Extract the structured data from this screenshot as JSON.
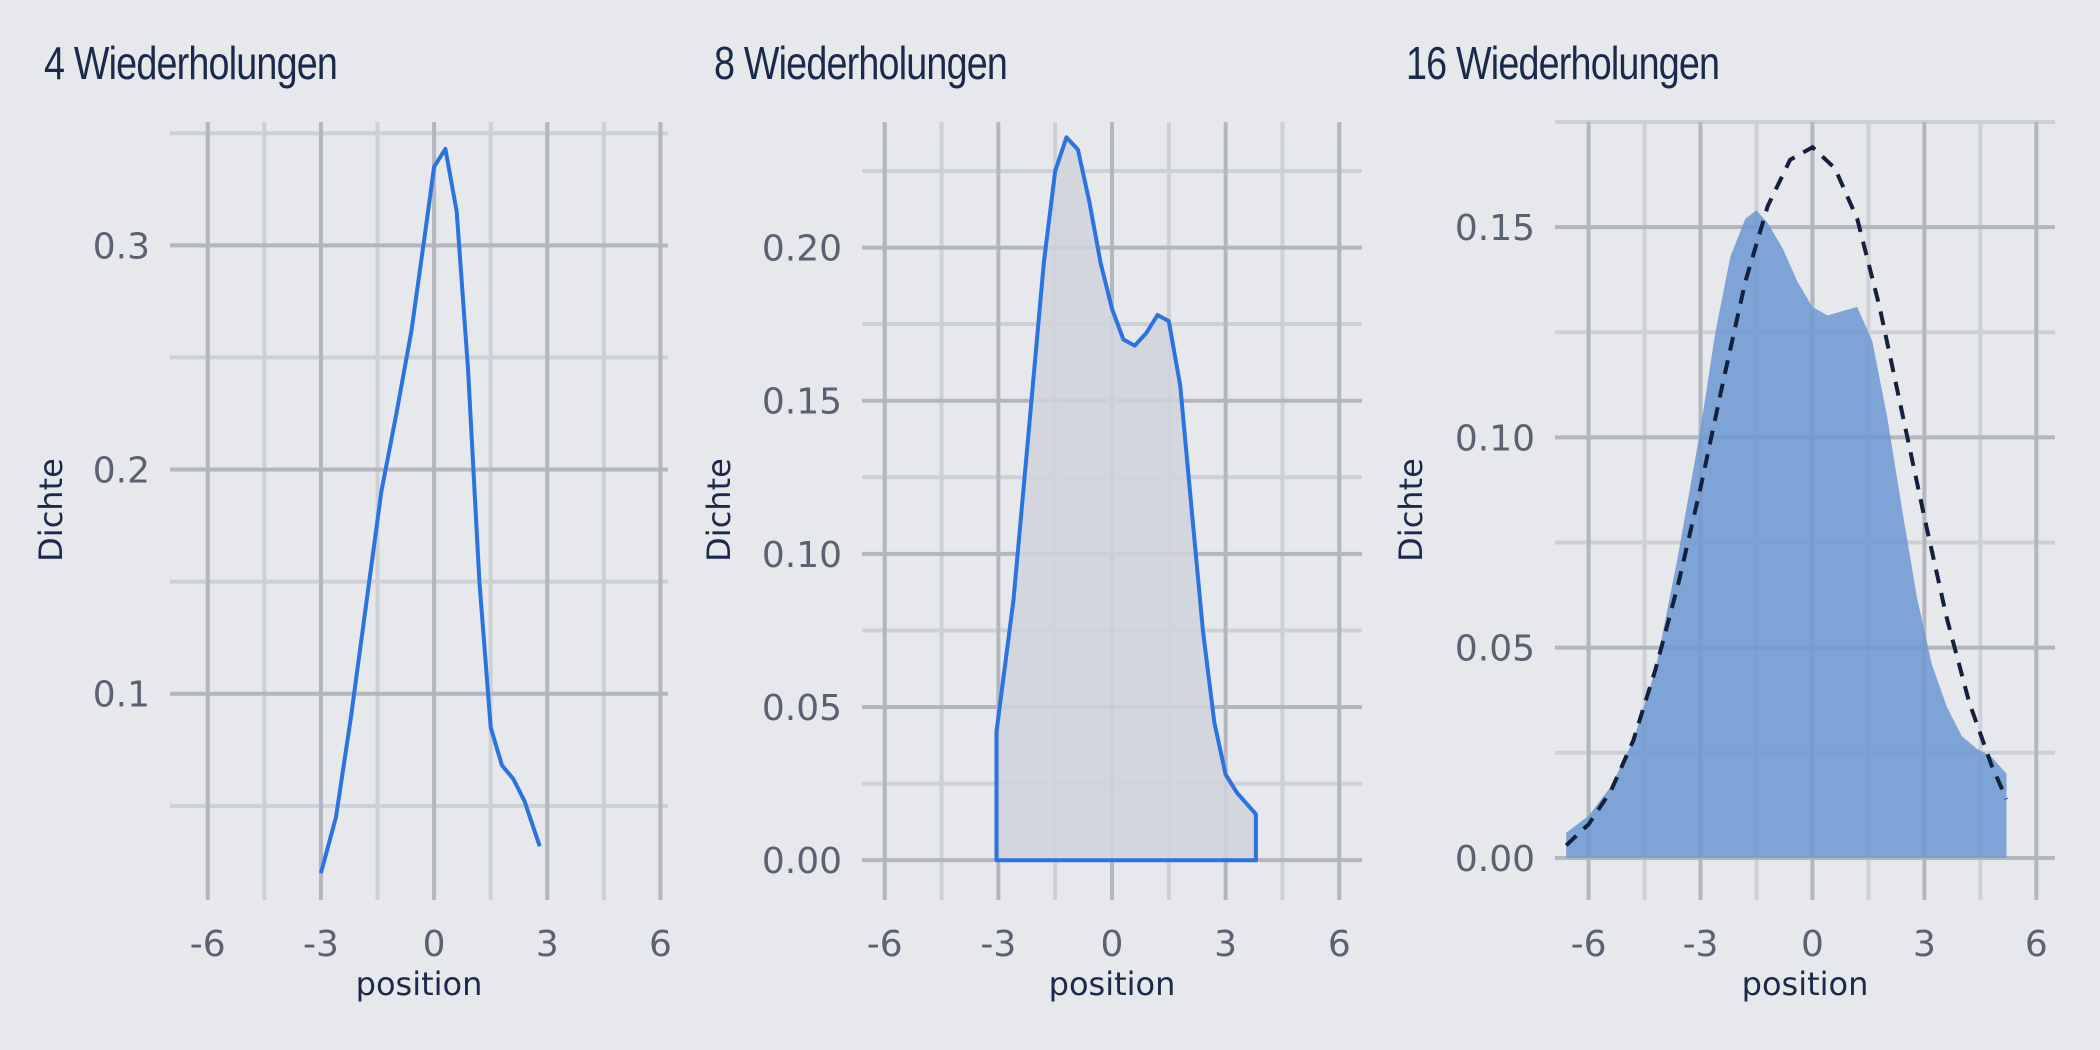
{
  "colors": {
    "background": "#e6e8ec",
    "grid_major": "#b3b6bd",
    "grid_minor": "#cdd0d5",
    "tick_text": "#5a6171",
    "title": "#1b2a4a",
    "line_blue": "#2a73e0",
    "fill_gray": "#cfd3da",
    "fill_blue": "#6f99d3",
    "normal_dashed": "#14213d"
  },
  "chart_data": [
    {
      "type": "line",
      "title": "4 Wiederholungen",
      "xlabel": "position",
      "ylabel": "Dichte",
      "xlim": [
        -7,
        6.2
      ],
      "ylim": [
        0.008,
        0.355
      ],
      "xticks": [
        -6,
        -3,
        0,
        3,
        6
      ],
      "xtick_labels": [
        "-6",
        "-3",
        "0",
        "3",
        "6"
      ],
      "yticks": [
        0.1,
        0.2,
        0.3
      ],
      "ytick_labels": [
        "0.1",
        "0.2",
        "0.3"
      ],
      "grid": true,
      "series": [
        {
          "style": "line",
          "x": [
            -3.0,
            -2.6,
            -2.2,
            -1.8,
            -1.4,
            -1.0,
            -0.6,
            -0.2,
            0.0,
            0.3,
            0.6,
            0.9,
            1.2,
            1.5,
            1.8,
            2.1,
            2.4,
            2.8
          ],
          "y": [
            0.02,
            0.045,
            0.09,
            0.14,
            0.19,
            0.225,
            0.262,
            0.31,
            0.335,
            0.343,
            0.315,
            0.245,
            0.15,
            0.085,
            0.068,
            0.062,
            0.052,
            0.032
          ]
        }
      ]
    },
    {
      "type": "area",
      "title": "8 Wiederholungen",
      "xlabel": "position",
      "ylabel": "Dichte",
      "xlim": [
        -6.6,
        6.6
      ],
      "ylim": [
        -0.013,
        0.241
      ],
      "xticks": [
        -6,
        -3,
        0,
        3,
        6
      ],
      "xtick_labels": [
        "-6",
        "-3",
        "0",
        "3",
        "6"
      ],
      "yticks": [
        0.0,
        0.05,
        0.1,
        0.15,
        0.2
      ],
      "ytick_labels": [
        "0.00",
        "0.05",
        "0.10",
        "0.15",
        "0.20"
      ],
      "grid": true,
      "series": [
        {
          "style": "filled-outline",
          "x": [
            -3.05,
            -3.05,
            -2.6,
            -2.2,
            -1.8,
            -1.5,
            -1.2,
            -0.9,
            -0.6,
            -0.3,
            0.0,
            0.3,
            0.6,
            0.9,
            1.2,
            1.5,
            1.8,
            2.1,
            2.4,
            2.7,
            3.0,
            3.3,
            3.8,
            3.8
          ],
          "y": [
            0.0,
            0.042,
            0.085,
            0.14,
            0.195,
            0.225,
            0.236,
            0.232,
            0.215,
            0.195,
            0.18,
            0.17,
            0.168,
            0.172,
            0.178,
            0.176,
            0.155,
            0.115,
            0.075,
            0.045,
            0.028,
            0.022,
            0.015,
            0.0
          ]
        }
      ]
    },
    {
      "type": "area",
      "title": "16 Wiederholungen",
      "xlabel": "position",
      "ylabel": "Dichte",
      "xlim": [
        -6.9,
        6.5
      ],
      "ylim": [
        -0.01,
        0.175
      ],
      "xticks": [
        -6,
        -3,
        0,
        3,
        6
      ],
      "xtick_labels": [
        "-6",
        "-3",
        "0",
        "3",
        "6"
      ],
      "yticks": [
        0.0,
        0.05,
        0.1,
        0.15
      ],
      "ytick_labels": [
        "0.00",
        "0.05",
        "0.10",
        "0.15"
      ],
      "grid": true,
      "series": [
        {
          "style": "filled",
          "x": [
            -6.6,
            -6.0,
            -5.4,
            -4.8,
            -4.2,
            -3.6,
            -3.0,
            -2.6,
            -2.2,
            -1.8,
            -1.5,
            -1.2,
            -0.8,
            -0.4,
            0.0,
            0.4,
            0.8,
            1.2,
            1.6,
            2.0,
            2.4,
            2.8,
            3.2,
            3.6,
            4.0,
            4.4,
            4.8,
            5.2
          ],
          "y": [
            0.006,
            0.01,
            0.017,
            0.028,
            0.045,
            0.072,
            0.102,
            0.125,
            0.143,
            0.152,
            0.154,
            0.151,
            0.145,
            0.137,
            0.131,
            0.129,
            0.13,
            0.131,
            0.123,
            0.105,
            0.083,
            0.062,
            0.046,
            0.036,
            0.029,
            0.026,
            0.024,
            0.02
          ]
        },
        {
          "style": "dashed",
          "x": [
            -6.6,
            -6.0,
            -5.4,
            -4.8,
            -4.2,
            -3.6,
            -3.0,
            -2.4,
            -1.8,
            -1.2,
            -0.6,
            0.0,
            0.6,
            1.2,
            1.8,
            2.4,
            3.0,
            3.6,
            4.2,
            4.8,
            5.2
          ],
          "y": [
            0.003,
            0.008,
            0.016,
            0.028,
            0.045,
            0.065,
            0.088,
            0.113,
            0.137,
            0.155,
            0.166,
            0.169,
            0.164,
            0.152,
            0.131,
            0.106,
            0.081,
            0.057,
            0.037,
            0.022,
            0.014
          ]
        }
      ]
    }
  ]
}
